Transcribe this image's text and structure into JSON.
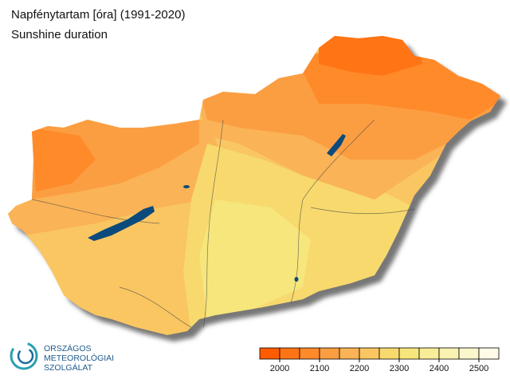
{
  "header": {
    "title": "Napfénytartam [óra] (1991-2020)",
    "subtitle": "Sunshine duration"
  },
  "logo": {
    "lines": [
      "ORSZÁGOS",
      "METEOROLÓGIAI",
      "SZOLGÁLAT"
    ]
  },
  "legend": {
    "colors": [
      "#ff5c00",
      "#ff7414",
      "#ff8a2a",
      "#fb9e42",
      "#fab356",
      "#f9c662",
      "#f7d96e",
      "#f6e67c",
      "#f8ed98",
      "#faf2b2",
      "#fcf6cc",
      "#fffbe8"
    ],
    "lim": [
      1950,
      2550
    ],
    "ticks": [
      2000,
      2100,
      2200,
      2300,
      2400,
      2500
    ]
  }
}
